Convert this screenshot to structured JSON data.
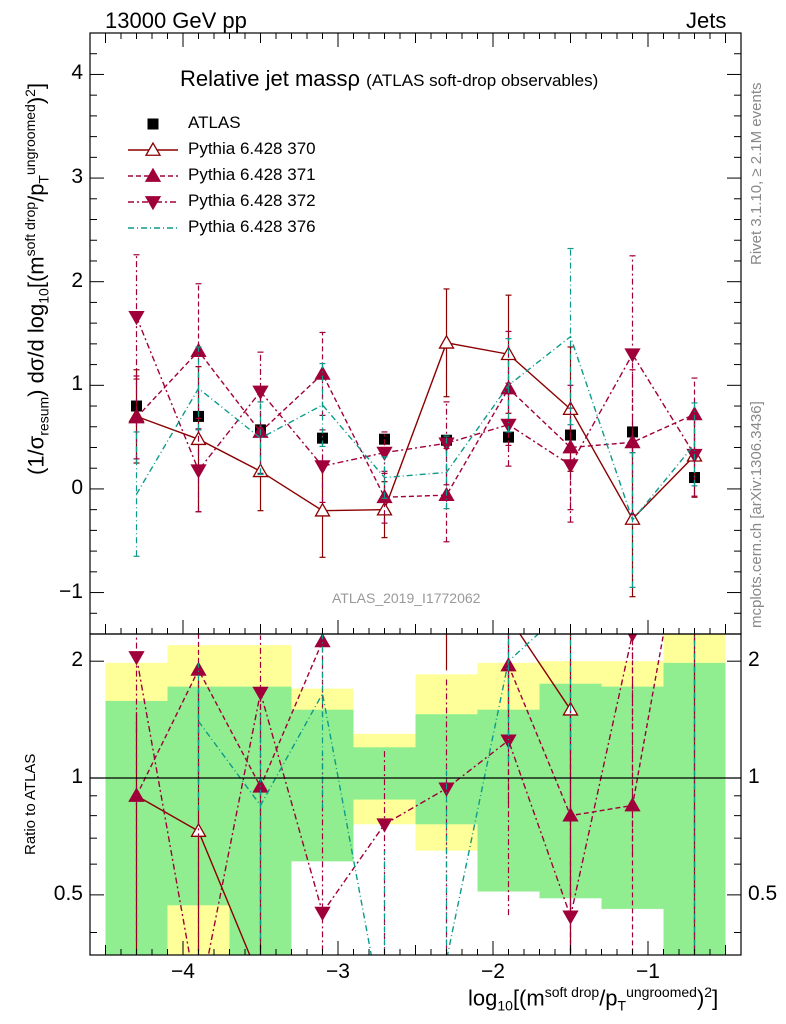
{
  "header": {
    "left": "13000 GeV pp",
    "right": "Jets"
  },
  "title": {
    "main": "Relative jet massρ",
    "sub": "(ATLAS soft-drop observables)"
  },
  "side_labels": {
    "rivet": "Rivet 3.1.10, ≥ 2.1M events",
    "mcplots": "mcplots.cern.ch [arXiv:1306.3436]"
  },
  "watermark": "ATLAS_2019_I1772062",
  "axes": {
    "main_ylabel_parts": [
      "(1/σ",
      "resum",
      ") dσ/d log",
      "10",
      "[(m",
      "soft drop",
      "/p",
      "T",
      "ungroomed",
      ")",
      "2",
      "]"
    ],
    "ratio_ylabel": "Ratio to ATLAS",
    "xlabel_parts": [
      "log",
      "10",
      "[(m",
      "soft drop",
      "/p",
      "T",
      "ungroomed",
      ")",
      "2",
      "]"
    ],
    "x_ticks": [
      "−4",
      "−3",
      "−2",
      "−1"
    ],
    "main_y_ticks": [
      "−1",
      "0",
      "1",
      "2",
      "3",
      "4"
    ],
    "ratio_y_ticks": [
      "0.5",
      "1",
      "2"
    ]
  },
  "legend": [
    {
      "label": "ATLAS",
      "color": "#000000",
      "marker": "square-filled",
      "dash": ""
    },
    {
      "label": "Pythia 6.428 370",
      "color": "#8B0000",
      "marker": "triangle-up-open",
      "dash": ""
    },
    {
      "label": "Pythia 6.428 371",
      "color": "#A0003A",
      "marker": "triangle-up-filled",
      "dash": "5,3"
    },
    {
      "label": "Pythia 6.428 372",
      "color": "#A0003A",
      "marker": "triangle-down-filled",
      "dash": "6,3,2,3"
    },
    {
      "label": "Pythia 6.428 376",
      "color": "#0E9A8A",
      "marker": "none",
      "dash": "6,3,1,3"
    }
  ],
  "chart_data": {
    "type": "line",
    "xlim": [
      -4.6,
      -0.4
    ],
    "ylim": [
      -1.4,
      4.4
    ],
    "ratio_ylim": [
      0.35,
      2.35
    ],
    "ratio_log": true,
    "x": [
      -4.3,
      -3.9,
      -3.5,
      -3.1,
      -2.7,
      -2.3,
      -1.9,
      -1.5,
      -1.1,
      -0.7
    ],
    "bin_edges": [
      -4.5,
      -4.1,
      -3.7,
      -3.3,
      -2.9,
      -2.5,
      -2.1,
      -1.7,
      -1.3,
      -0.9,
      -0.5
    ],
    "series": [
      {
        "name": "ATLAS",
        "values": [
          0.8,
          0.7,
          0.57,
          0.49,
          0.48,
          0.47,
          0.5,
          0.52,
          0.55,
          0.11
        ]
      },
      {
        "name": "Pythia 6.428 370",
        "values": [
          0.7,
          0.48,
          0.17,
          -0.21,
          -0.2,
          1.41,
          1.3,
          0.77,
          -0.29,
          0.32
        ],
        "errors": [
          0.45,
          0.7,
          0.38,
          0.45,
          0.27,
          0.52,
          0.57,
          0.6,
          0.75,
          0.4
        ]
      },
      {
        "name": "Pythia 6.428 371",
        "values": [
          0.69,
          1.33,
          0.55,
          1.11,
          -0.08,
          -0.06,
          0.97,
          0.4,
          0.45,
          0.72
        ],
        "errors": [
          0.4,
          0.65,
          0.4,
          0.4,
          0.25,
          0.45,
          0.55,
          0.6,
          0.7,
          0.35
        ]
      },
      {
        "name": "Pythia 6.428 372",
        "values": [
          1.66,
          0.18,
          0.94,
          0.22,
          0.35,
          0.44,
          0.62,
          0.23,
          1.3,
          0.33
        ],
        "errors": [
          0.6,
          0.4,
          0.38,
          0.35,
          0.2,
          0.4,
          0.4,
          0.55,
          0.95,
          0.4
        ]
      },
      {
        "name": "Pythia 6.428 376",
        "values": [
          -0.05,
          0.97,
          0.49,
          0.81,
          0.11,
          0.16,
          1.0,
          1.47,
          -0.3,
          0.43
        ],
        "errors": [
          0.6,
          0.4,
          0.35,
          0.4,
          0.2,
          0.35,
          0.45,
          0.85,
          0.65,
          0.4
        ]
      }
    ],
    "ratio_series": [
      {
        "name": "Pythia 6.428 370",
        "values": [
          0.9,
          0.73,
          0.3,
          null,
          null,
          3.0,
          2.6,
          1.5,
          null,
          2.9
        ]
      },
      {
        "name": "Pythia 6.428 371",
        "values": [
          0.9,
          1.9,
          0.95,
          2.25,
          null,
          null,
          1.95,
          0.8,
          0.85,
          6.5
        ]
      },
      {
        "name": "Pythia 6.428 372",
        "values": [
          2.05,
          0.26,
          1.66,
          0.45,
          0.76,
          0.94,
          1.25,
          0.44,
          2.35,
          3.0
        ]
      },
      {
        "name": "Pythia 6.428 376",
        "values": [
          null,
          1.4,
          0.85,
          1.65,
          0.23,
          0.34,
          2.0,
          2.8,
          null,
          3.9
        ]
      }
    ],
    "ratio_bands": {
      "yellow": [
        [
          0.52,
          1.98
        ],
        [
          0.35,
          2.2
        ],
        [
          0.35,
          2.2
        ],
        [
          0.72,
          1.7
        ],
        [
          0.76,
          1.3
        ],
        [
          0.65,
          1.85
        ],
        [
          0.58,
          1.98
        ],
        [
          0.53,
          2.0
        ],
        [
          0.53,
          2.0
        ],
        [
          0.35,
          2.35
        ]
      ],
      "green": [
        [
          0.35,
          1.58
        ],
        [
          0.47,
          1.72
        ],
        [
          0.35,
          1.72
        ],
        [
          0.61,
          1.5
        ],
        [
          0.88,
          1.2
        ],
        [
          0.76,
          1.46
        ],
        [
          0.51,
          1.5
        ],
        [
          0.49,
          1.75
        ],
        [
          0.46,
          1.72
        ],
        [
          0.35,
          1.98
        ]
      ]
    }
  }
}
